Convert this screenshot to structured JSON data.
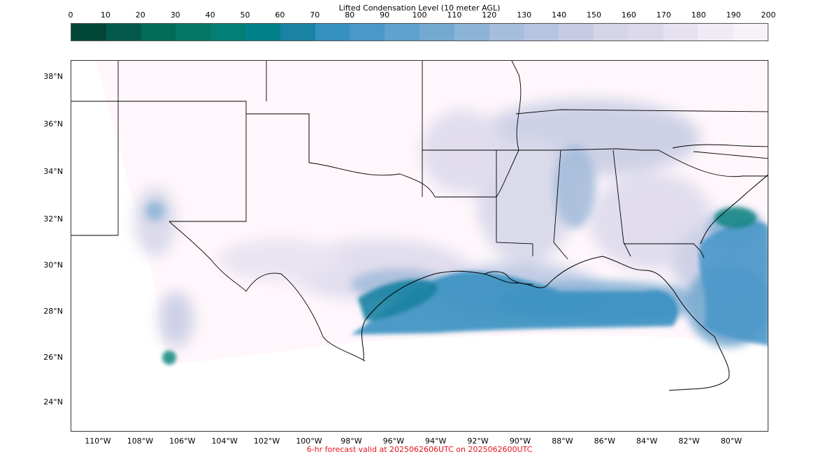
{
  "colorbar": {
    "title": "Lifted Condensation Level (10 meter AGL)",
    "ticks": [
      "0",
      "10",
      "20",
      "30",
      "40",
      "50",
      "60",
      "70",
      "80",
      "90",
      "100",
      "110",
      "120",
      "130",
      "140",
      "150",
      "160",
      "170",
      "180",
      "190",
      "200"
    ],
    "colors": [
      "#014636",
      "#02594b",
      "#036b58",
      "#037665",
      "#037f76",
      "#02818a",
      "#1a82a2",
      "#3690c0",
      "#4a98c9",
      "#5ea2ce",
      "#74a9cf",
      "#8bb4d6",
      "#a6bddb",
      "#b5c4e0",
      "#c6cbe3",
      "#d4d5e8",
      "#dcd9eb",
      "#e6e1ef",
      "#efeaf4",
      "#f6f2f8",
      "#fff7fb"
    ]
  },
  "map": {
    "lat_labels": [
      "38°N",
      "36°N",
      "34°N",
      "32°N",
      "30°N",
      "28°N",
      "26°N",
      "24°N"
    ],
    "lon_labels": [
      "110°W",
      "108°W",
      "106°W",
      "104°W",
      "102°W",
      "100°W",
      "98°W",
      "96°W",
      "94°W",
      "92°W",
      "90°W",
      "88°W",
      "86°W",
      "84°W",
      "82°W",
      "80°W"
    ],
    "colors": {
      "no_data": "#ffffff",
      "land_high": "#fff7fb",
      "border": "#000000"
    }
  },
  "footer": {
    "text": "6-hr forecast valid at 2025062606UTC on 2025062600UTC"
  }
}
